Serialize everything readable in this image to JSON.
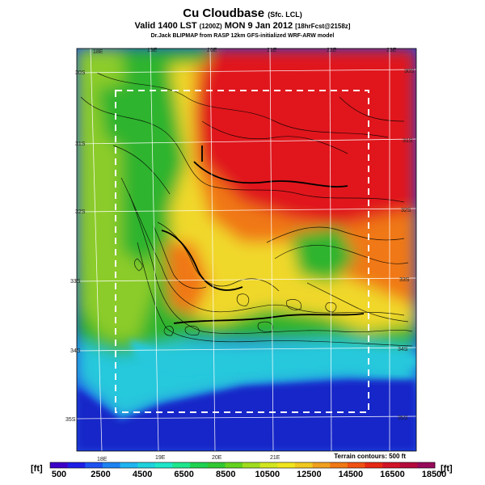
{
  "header": {
    "title": "Cu Cloudbase",
    "title_sub": "(Sfc. LCL)",
    "valid_prefix": "Valid 1400 LST",
    "valid_utc": "(1200Z)",
    "valid_date": "MON 9 Jan 2012",
    "valid_fcst": "[18hrFcst@2158z]",
    "credit": "Dr.Jack BLIPMAP from RASP 12km GFS-initialized WRF-ARW model"
  },
  "map": {
    "lon_labels_top": [
      "18E",
      "19E",
      "20E",
      "21E",
      "22E",
      "23E"
    ],
    "lon_labels_bottom": [
      "18E",
      "19E",
      "20E",
      "21E"
    ],
    "lat_labels_left": [
      "30S",
      "31S",
      "32S",
      "33S",
      "34S",
      "35S"
    ],
    "lat_labels_right": [
      "30S",
      "31S",
      "32S",
      "33S",
      "34S",
      "35S"
    ],
    "terrain_note": "Terrain contours: 500 ft",
    "colors": {
      "high": "#e0141e",
      "orange": "#f07818",
      "yellow": "#f0d82a",
      "green": "#2eb42e",
      "cyan": "#28c8dc",
      "blue": "#1e50e6",
      "deep_blue": "#1428c8"
    }
  },
  "colorbar": {
    "unit_left": "[ft]",
    "unit_right": "[ft]",
    "labels": [
      "500",
      "2500",
      "4500",
      "6500",
      "8500",
      "10500",
      "12500",
      "14500",
      "16500",
      "18500"
    ],
    "colors": [
      "#3c00c8",
      "#1e1ee6",
      "#1e50f0",
      "#1e82f0",
      "#1eb4f0",
      "#1ed2dc",
      "#1ee6c8",
      "#1ee68c",
      "#1ed250",
      "#32c832",
      "#64d21e",
      "#a0dc1e",
      "#d2e61e",
      "#f0e61e",
      "#f0c81e",
      "#f0a01e",
      "#f07814",
      "#f05014",
      "#e62814",
      "#d21428",
      "#b40a3c",
      "#960a5a"
    ]
  }
}
